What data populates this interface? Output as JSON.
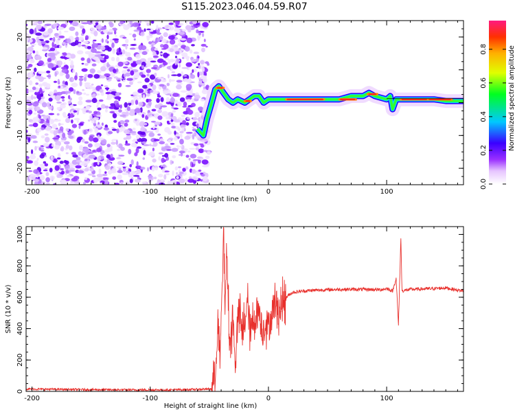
{
  "title": "S115.2023.046.04.59.R07",
  "colors": {
    "line": "#e8302c",
    "spectral_trace": "#e8302c",
    "axis": "#000000"
  },
  "chart_data": [
    {
      "type": "heatmap",
      "xlabel": "Height of straight line (km)",
      "ylabel": "Frequency (Hz)",
      "xlim": [
        -205,
        165
      ],
      "ylim": [
        -25,
        25
      ],
      "xticks": [
        -200,
        -100,
        0,
        100
      ],
      "yticks": [
        -20,
        -10,
        0,
        10,
        20
      ],
      "noise_region": [
        -205,
        -55
      ],
      "ridge": [
        [
          -60,
          -8
        ],
        [
          -55,
          -10
        ],
        [
          -52,
          -5
        ],
        [
          -48,
          0
        ],
        [
          -45,
          4
        ],
        [
          -42,
          5
        ],
        [
          -38,
          3
        ],
        [
          -34,
          1
        ],
        [
          -30,
          0
        ],
        [
          -26,
          1
        ],
        [
          -20,
          0
        ],
        [
          -16,
          1
        ],
        [
          -12,
          2
        ],
        [
          -8,
          2
        ],
        [
          -4,
          0
        ],
        [
          0,
          1
        ],
        [
          10,
          1
        ],
        [
          20,
          1
        ],
        [
          30,
          1
        ],
        [
          40,
          1
        ],
        [
          50,
          1
        ],
        [
          60,
          1
        ],
        [
          70,
          2
        ],
        [
          80,
          2
        ],
        [
          85,
          3
        ],
        [
          90,
          2
        ],
        [
          100,
          1
        ],
        [
          103,
          2
        ],
        [
          105,
          -2
        ],
        [
          108,
          1
        ],
        [
          120,
          1
        ],
        [
          130,
          1
        ],
        [
          140,
          1
        ],
        [
          150,
          0.5
        ],
        [
          160,
          0.5
        ],
        [
          165,
          0.5
        ]
      ],
      "colorbar": {
        "label": "Normalized spectral amplitude",
        "ticks": [
          "0.0",
          "0.2",
          "0.4",
          "0.6",
          "0.8"
        ],
        "range": [
          0,
          0.97
        ]
      }
    },
    {
      "type": "line",
      "xlabel": "Height of straight line (km)",
      "ylabel": "SNR (10 * v/v)",
      "xlim": [
        -205,
        165
      ],
      "ylim": [
        0,
        1050
      ],
      "xticks": [
        -200,
        -100,
        0,
        100
      ],
      "yticks": [
        0,
        200,
        400,
        600,
        800,
        1000
      ],
      "series": [
        {
          "values": [
            [
              -205,
              15
            ],
            [
              -160,
              12
            ],
            [
              -120,
              10
            ],
            [
              -80,
              10
            ],
            [
              -48,
              15
            ],
            [
              -45,
              120
            ],
            [
              -43,
              420
            ],
            [
              -41,
              200
            ],
            [
              -39,
              650
            ],
            [
              -38,
              1050
            ],
            [
              -37,
              600
            ],
            [
              -35,
              850
            ],
            [
              -33,
              300
            ],
            [
              -30,
              450
            ],
            [
              -28,
              200
            ],
            [
              -25,
              520
            ],
            [
              -22,
              350
            ],
            [
              -18,
              560
            ],
            [
              -15,
              380
            ],
            [
              -12,
              460
            ],
            [
              -8,
              520
            ],
            [
              -5,
              380
            ],
            [
              -2,
              450
            ],
            [
              0,
              400
            ],
            [
              5,
              560
            ],
            [
              10,
              520
            ],
            [
              15,
              600
            ],
            [
              20,
              630
            ],
            [
              30,
              640
            ],
            [
              40,
              645
            ],
            [
              60,
              650
            ],
            [
              80,
              650
            ],
            [
              95,
              648
            ],
            [
              100,
              655
            ],
            [
              105,
              640
            ],
            [
              108,
              720
            ],
            [
              110,
              420
            ],
            [
              112,
              980
            ],
            [
              113,
              640
            ],
            [
              120,
              650
            ],
            [
              140,
              655
            ],
            [
              150,
              660
            ],
            [
              160,
              645
            ],
            [
              165,
              640
            ]
          ]
        }
      ]
    }
  ]
}
